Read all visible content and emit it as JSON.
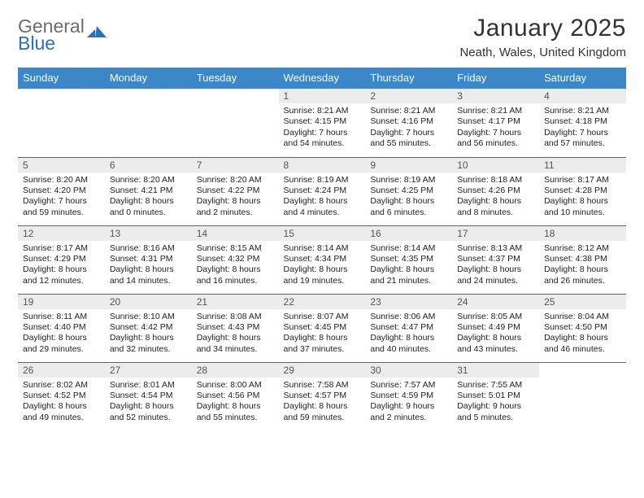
{
  "logo": {
    "text1": "General",
    "text2": "Blue"
  },
  "title": "January 2025",
  "subtitle": "Neath, Wales, United Kingdom",
  "colors": {
    "header_bg": "#3b87c8",
    "header_text": "#ffffff",
    "daynum_bg": "#ececec",
    "daynum_text": "#555555",
    "body_text": "#222222",
    "rule": "#2a72b5",
    "logo_gray": "#6c6c6c",
    "logo_blue": "#2a72b5"
  },
  "weekdays": [
    "Sunday",
    "Monday",
    "Tuesday",
    "Wednesday",
    "Thursday",
    "Friday",
    "Saturday"
  ],
  "weeks": [
    [
      {
        "n": ""
      },
      {
        "n": ""
      },
      {
        "n": ""
      },
      {
        "n": "1",
        "sr": "Sunrise: 8:21 AM",
        "ss": "Sunset: 4:15 PM",
        "d1": "Daylight: 7 hours",
        "d2": "and 54 minutes."
      },
      {
        "n": "2",
        "sr": "Sunrise: 8:21 AM",
        "ss": "Sunset: 4:16 PM",
        "d1": "Daylight: 7 hours",
        "d2": "and 55 minutes."
      },
      {
        "n": "3",
        "sr": "Sunrise: 8:21 AM",
        "ss": "Sunset: 4:17 PM",
        "d1": "Daylight: 7 hours",
        "d2": "and 56 minutes."
      },
      {
        "n": "4",
        "sr": "Sunrise: 8:21 AM",
        "ss": "Sunset: 4:18 PM",
        "d1": "Daylight: 7 hours",
        "d2": "and 57 minutes."
      }
    ],
    [
      {
        "n": "5",
        "sr": "Sunrise: 8:20 AM",
        "ss": "Sunset: 4:20 PM",
        "d1": "Daylight: 7 hours",
        "d2": "and 59 minutes."
      },
      {
        "n": "6",
        "sr": "Sunrise: 8:20 AM",
        "ss": "Sunset: 4:21 PM",
        "d1": "Daylight: 8 hours",
        "d2": "and 0 minutes."
      },
      {
        "n": "7",
        "sr": "Sunrise: 8:20 AM",
        "ss": "Sunset: 4:22 PM",
        "d1": "Daylight: 8 hours",
        "d2": "and 2 minutes."
      },
      {
        "n": "8",
        "sr": "Sunrise: 8:19 AM",
        "ss": "Sunset: 4:24 PM",
        "d1": "Daylight: 8 hours",
        "d2": "and 4 minutes."
      },
      {
        "n": "9",
        "sr": "Sunrise: 8:19 AM",
        "ss": "Sunset: 4:25 PM",
        "d1": "Daylight: 8 hours",
        "d2": "and 6 minutes."
      },
      {
        "n": "10",
        "sr": "Sunrise: 8:18 AM",
        "ss": "Sunset: 4:26 PM",
        "d1": "Daylight: 8 hours",
        "d2": "and 8 minutes."
      },
      {
        "n": "11",
        "sr": "Sunrise: 8:17 AM",
        "ss": "Sunset: 4:28 PM",
        "d1": "Daylight: 8 hours",
        "d2": "and 10 minutes."
      }
    ],
    [
      {
        "n": "12",
        "sr": "Sunrise: 8:17 AM",
        "ss": "Sunset: 4:29 PM",
        "d1": "Daylight: 8 hours",
        "d2": "and 12 minutes."
      },
      {
        "n": "13",
        "sr": "Sunrise: 8:16 AM",
        "ss": "Sunset: 4:31 PM",
        "d1": "Daylight: 8 hours",
        "d2": "and 14 minutes."
      },
      {
        "n": "14",
        "sr": "Sunrise: 8:15 AM",
        "ss": "Sunset: 4:32 PM",
        "d1": "Daylight: 8 hours",
        "d2": "and 16 minutes."
      },
      {
        "n": "15",
        "sr": "Sunrise: 8:14 AM",
        "ss": "Sunset: 4:34 PM",
        "d1": "Daylight: 8 hours",
        "d2": "and 19 minutes."
      },
      {
        "n": "16",
        "sr": "Sunrise: 8:14 AM",
        "ss": "Sunset: 4:35 PM",
        "d1": "Daylight: 8 hours",
        "d2": "and 21 minutes."
      },
      {
        "n": "17",
        "sr": "Sunrise: 8:13 AM",
        "ss": "Sunset: 4:37 PM",
        "d1": "Daylight: 8 hours",
        "d2": "and 24 minutes."
      },
      {
        "n": "18",
        "sr": "Sunrise: 8:12 AM",
        "ss": "Sunset: 4:38 PM",
        "d1": "Daylight: 8 hours",
        "d2": "and 26 minutes."
      }
    ],
    [
      {
        "n": "19",
        "sr": "Sunrise: 8:11 AM",
        "ss": "Sunset: 4:40 PM",
        "d1": "Daylight: 8 hours",
        "d2": "and 29 minutes."
      },
      {
        "n": "20",
        "sr": "Sunrise: 8:10 AM",
        "ss": "Sunset: 4:42 PM",
        "d1": "Daylight: 8 hours",
        "d2": "and 32 minutes."
      },
      {
        "n": "21",
        "sr": "Sunrise: 8:08 AM",
        "ss": "Sunset: 4:43 PM",
        "d1": "Daylight: 8 hours",
        "d2": "and 34 minutes."
      },
      {
        "n": "22",
        "sr": "Sunrise: 8:07 AM",
        "ss": "Sunset: 4:45 PM",
        "d1": "Daylight: 8 hours",
        "d2": "and 37 minutes."
      },
      {
        "n": "23",
        "sr": "Sunrise: 8:06 AM",
        "ss": "Sunset: 4:47 PM",
        "d1": "Daylight: 8 hours",
        "d2": "and 40 minutes."
      },
      {
        "n": "24",
        "sr": "Sunrise: 8:05 AM",
        "ss": "Sunset: 4:49 PM",
        "d1": "Daylight: 8 hours",
        "d2": "and 43 minutes."
      },
      {
        "n": "25",
        "sr": "Sunrise: 8:04 AM",
        "ss": "Sunset: 4:50 PM",
        "d1": "Daylight: 8 hours",
        "d2": "and 46 minutes."
      }
    ],
    [
      {
        "n": "26",
        "sr": "Sunrise: 8:02 AM",
        "ss": "Sunset: 4:52 PM",
        "d1": "Daylight: 8 hours",
        "d2": "and 49 minutes."
      },
      {
        "n": "27",
        "sr": "Sunrise: 8:01 AM",
        "ss": "Sunset: 4:54 PM",
        "d1": "Daylight: 8 hours",
        "d2": "and 52 minutes."
      },
      {
        "n": "28",
        "sr": "Sunrise: 8:00 AM",
        "ss": "Sunset: 4:56 PM",
        "d1": "Daylight: 8 hours",
        "d2": "and 55 minutes."
      },
      {
        "n": "29",
        "sr": "Sunrise: 7:58 AM",
        "ss": "Sunset: 4:57 PM",
        "d1": "Daylight: 8 hours",
        "d2": "and 59 minutes."
      },
      {
        "n": "30",
        "sr": "Sunrise: 7:57 AM",
        "ss": "Sunset: 4:59 PM",
        "d1": "Daylight: 9 hours",
        "d2": "and 2 minutes."
      },
      {
        "n": "31",
        "sr": "Sunrise: 7:55 AM",
        "ss": "Sunset: 5:01 PM",
        "d1": "Daylight: 9 hours",
        "d2": "and 5 minutes."
      },
      {
        "n": ""
      }
    ]
  ]
}
